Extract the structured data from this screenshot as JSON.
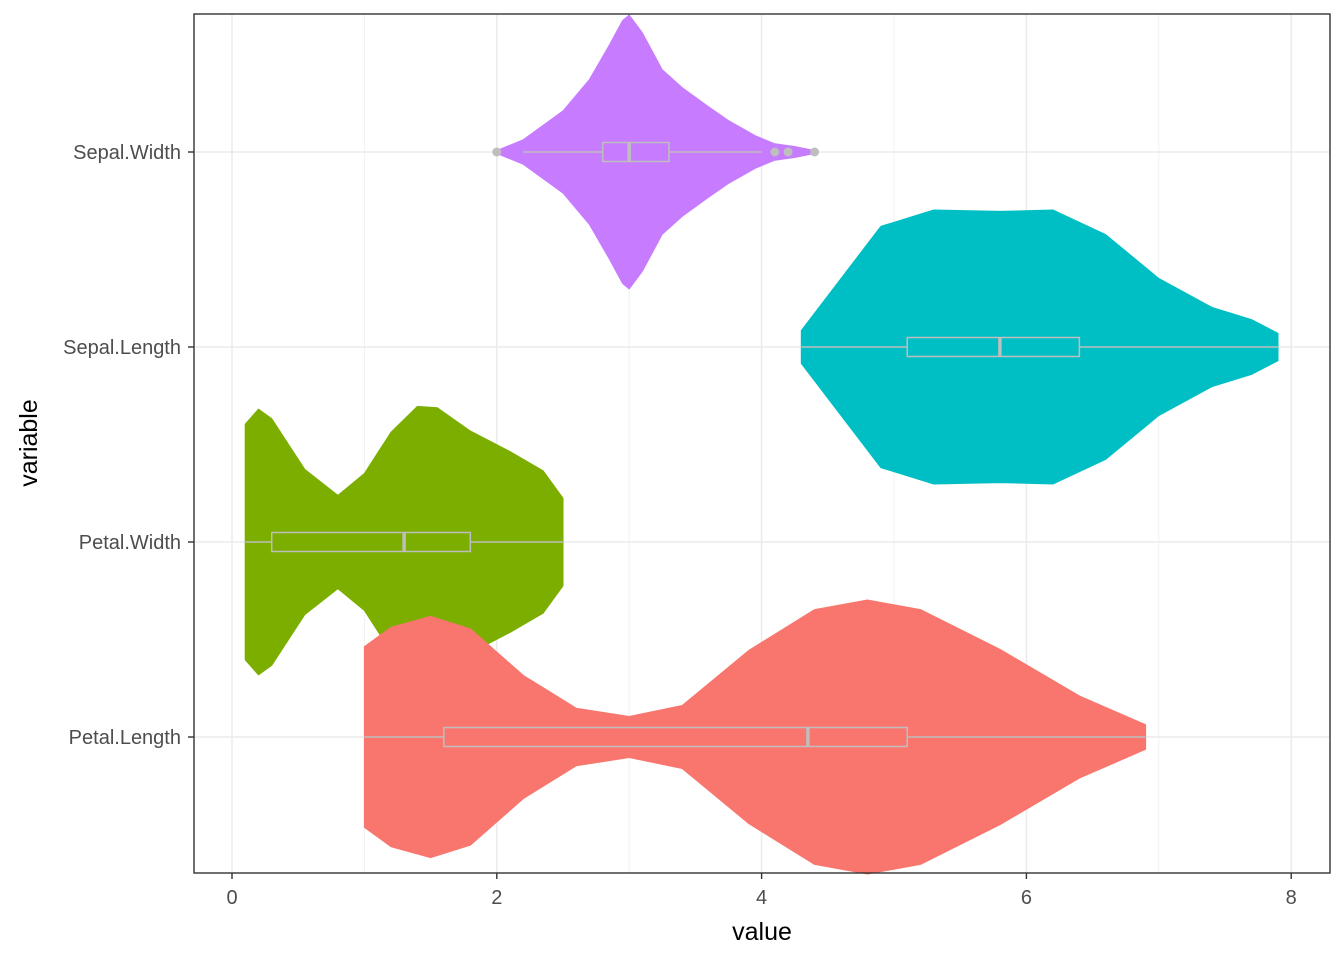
{
  "chart_data": {
    "type": "violin",
    "orientation": "horizontal",
    "xlabel": "value",
    "ylabel": "variable",
    "xlim": [
      -0.29,
      8.29
    ],
    "x_ticks": [
      0,
      2,
      4,
      6,
      8
    ],
    "x_tick_labels": [
      "0",
      "2",
      "4",
      "6",
      "8"
    ],
    "grid": true,
    "legend": "none",
    "box_color": "#bebebe",
    "categories": [
      "Sepal.Width",
      "Sepal.Length",
      "Petal.Width",
      "Petal.Length"
    ],
    "series": [
      {
        "name": "Sepal.Width",
        "color": "#C77CFF",
        "box": {
          "min": 2.2,
          "q1": 2.8,
          "median": 3.0,
          "q3": 3.3,
          "max": 4.0
        },
        "outliers": [
          2.0,
          4.1,
          4.2,
          4.4
        ],
        "density": [
          [
            2.0,
            0.01
          ],
          [
            2.2,
            0.09
          ],
          [
            2.5,
            0.3
          ],
          [
            2.7,
            0.53
          ],
          [
            2.85,
            0.78
          ],
          [
            2.95,
            0.96
          ],
          [
            3.0,
            1.0
          ],
          [
            3.1,
            0.87
          ],
          [
            3.25,
            0.6
          ],
          [
            3.4,
            0.47
          ],
          [
            3.6,
            0.33
          ],
          [
            3.75,
            0.23
          ],
          [
            3.95,
            0.12
          ],
          [
            4.1,
            0.06
          ],
          [
            4.25,
            0.04
          ],
          [
            4.4,
            0.01
          ]
        ]
      },
      {
        "name": "Sepal.Length",
        "color": "#00BFC4",
        "box": {
          "min": 4.3,
          "q1": 5.1,
          "median": 5.8,
          "q3": 6.4,
          "max": 7.9
        },
        "outliers": [],
        "density": [
          [
            4.3,
            0.12
          ],
          [
            4.6,
            0.5
          ],
          [
            4.9,
            0.88
          ],
          [
            5.3,
            1.0
          ],
          [
            5.8,
            0.99
          ],
          [
            6.2,
            1.0
          ],
          [
            6.6,
            0.82
          ],
          [
            7.0,
            0.5
          ],
          [
            7.4,
            0.29
          ],
          [
            7.7,
            0.2
          ],
          [
            7.9,
            0.1
          ]
        ]
      },
      {
        "name": "Petal.Width",
        "color": "#7CAE00",
        "box": {
          "min": 0.1,
          "q1": 0.3,
          "median": 1.3,
          "q3": 1.8,
          "max": 2.5
        },
        "outliers": [],
        "density": [
          [
            0.1,
            0.86
          ],
          [
            0.2,
            0.97
          ],
          [
            0.3,
            0.9
          ],
          [
            0.55,
            0.53
          ],
          [
            0.8,
            0.34
          ],
          [
            1.0,
            0.5
          ],
          [
            1.2,
            0.8
          ],
          [
            1.4,
            0.99
          ],
          [
            1.55,
            0.98
          ],
          [
            1.8,
            0.81
          ],
          [
            2.1,
            0.66
          ],
          [
            2.35,
            0.52
          ],
          [
            2.5,
            0.32
          ]
        ]
      },
      {
        "name": "Petal.Length",
        "color": "#F8766D",
        "box": {
          "min": 1.0,
          "q1": 1.6,
          "median": 4.35,
          "q3": 5.1,
          "max": 6.9
        },
        "outliers": [],
        "density": [
          [
            1.0,
            0.66
          ],
          [
            1.2,
            0.8
          ],
          [
            1.5,
            0.88
          ],
          [
            1.8,
            0.79
          ],
          [
            2.2,
            0.45
          ],
          [
            2.6,
            0.21
          ],
          [
            3.0,
            0.15
          ],
          [
            3.4,
            0.23
          ],
          [
            3.9,
            0.63
          ],
          [
            4.4,
            0.93
          ],
          [
            4.8,
            1.0
          ],
          [
            5.2,
            0.93
          ],
          [
            5.8,
            0.64
          ],
          [
            6.4,
            0.3
          ],
          [
            6.9,
            0.09
          ]
        ]
      }
    ]
  }
}
